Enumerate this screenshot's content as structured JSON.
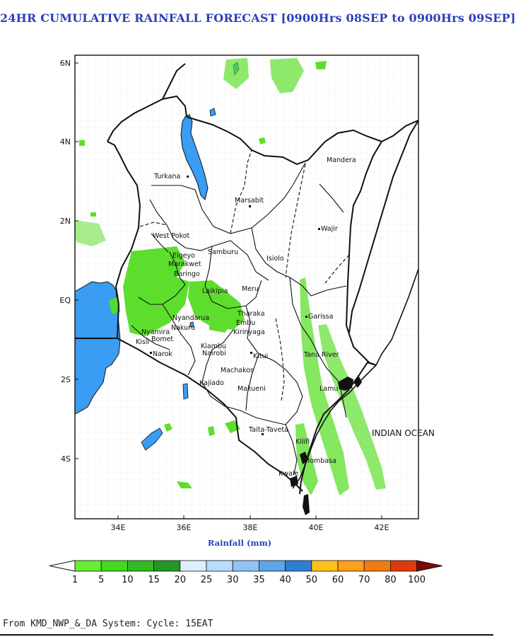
{
  "title": "24HR CUMULATIVE RAINFALL FORECAST [0900Hrs 08SEP to 0900Hrs 09SEP]",
  "map": {
    "lat_ticks": [
      "6N",
      "4N",
      "2N",
      "EQ",
      "2S",
      "4S"
    ],
    "lon_ticks": [
      "34E",
      "36E",
      "38E",
      "40E",
      "42E"
    ],
    "x_axis_label": "Rainfall (mm)",
    "places": [
      "Turkana",
      "Marsabit",
      "Mandera",
      "Wajir",
      "West Pokot",
      "Samburu",
      "Elgeyo",
      "Marakwet",
      "Baringo",
      "Isiolo",
      "Laikipia",
      "Meru",
      "Garissa",
      "Tharaka",
      "Embu",
      "Kirinyaga",
      "Nyandarua",
      "Nakuru",
      "Bomet",
      "Narok",
      "Kisii",
      "Nyamira",
      "Nairobi",
      "Kiambu",
      "Machakos",
      "Kitui",
      "Kajiado",
      "Makueni",
      "Tana River",
      "Lamu",
      "Taita-Taveta",
      "Kilifi",
      "Mombasa",
      "Kwale",
      "INDIAN OCEAN"
    ]
  },
  "colorbar": {
    "ticks": [
      "1",
      "5",
      "10",
      "15",
      "20",
      "25",
      "30",
      "35",
      "40",
      "50",
      "60",
      "70",
      "80",
      "100"
    ],
    "colors": [
      "#66ee33",
      "#44d822",
      "#33bb22",
      "#229922",
      "#ddeeff",
      "#b8dcff",
      "#90c2f2",
      "#5aa6e8",
      "#2f7fd1",
      "#ffc21a",
      "#ffa01a",
      "#f07d12",
      "#e03a0a",
      "#cc0000"
    ],
    "low_color": "#ffffff",
    "high_color": "#7a0a0a"
  },
  "footer": "From KMD_NWP_&_DA System: Cycle: 15EAT"
}
